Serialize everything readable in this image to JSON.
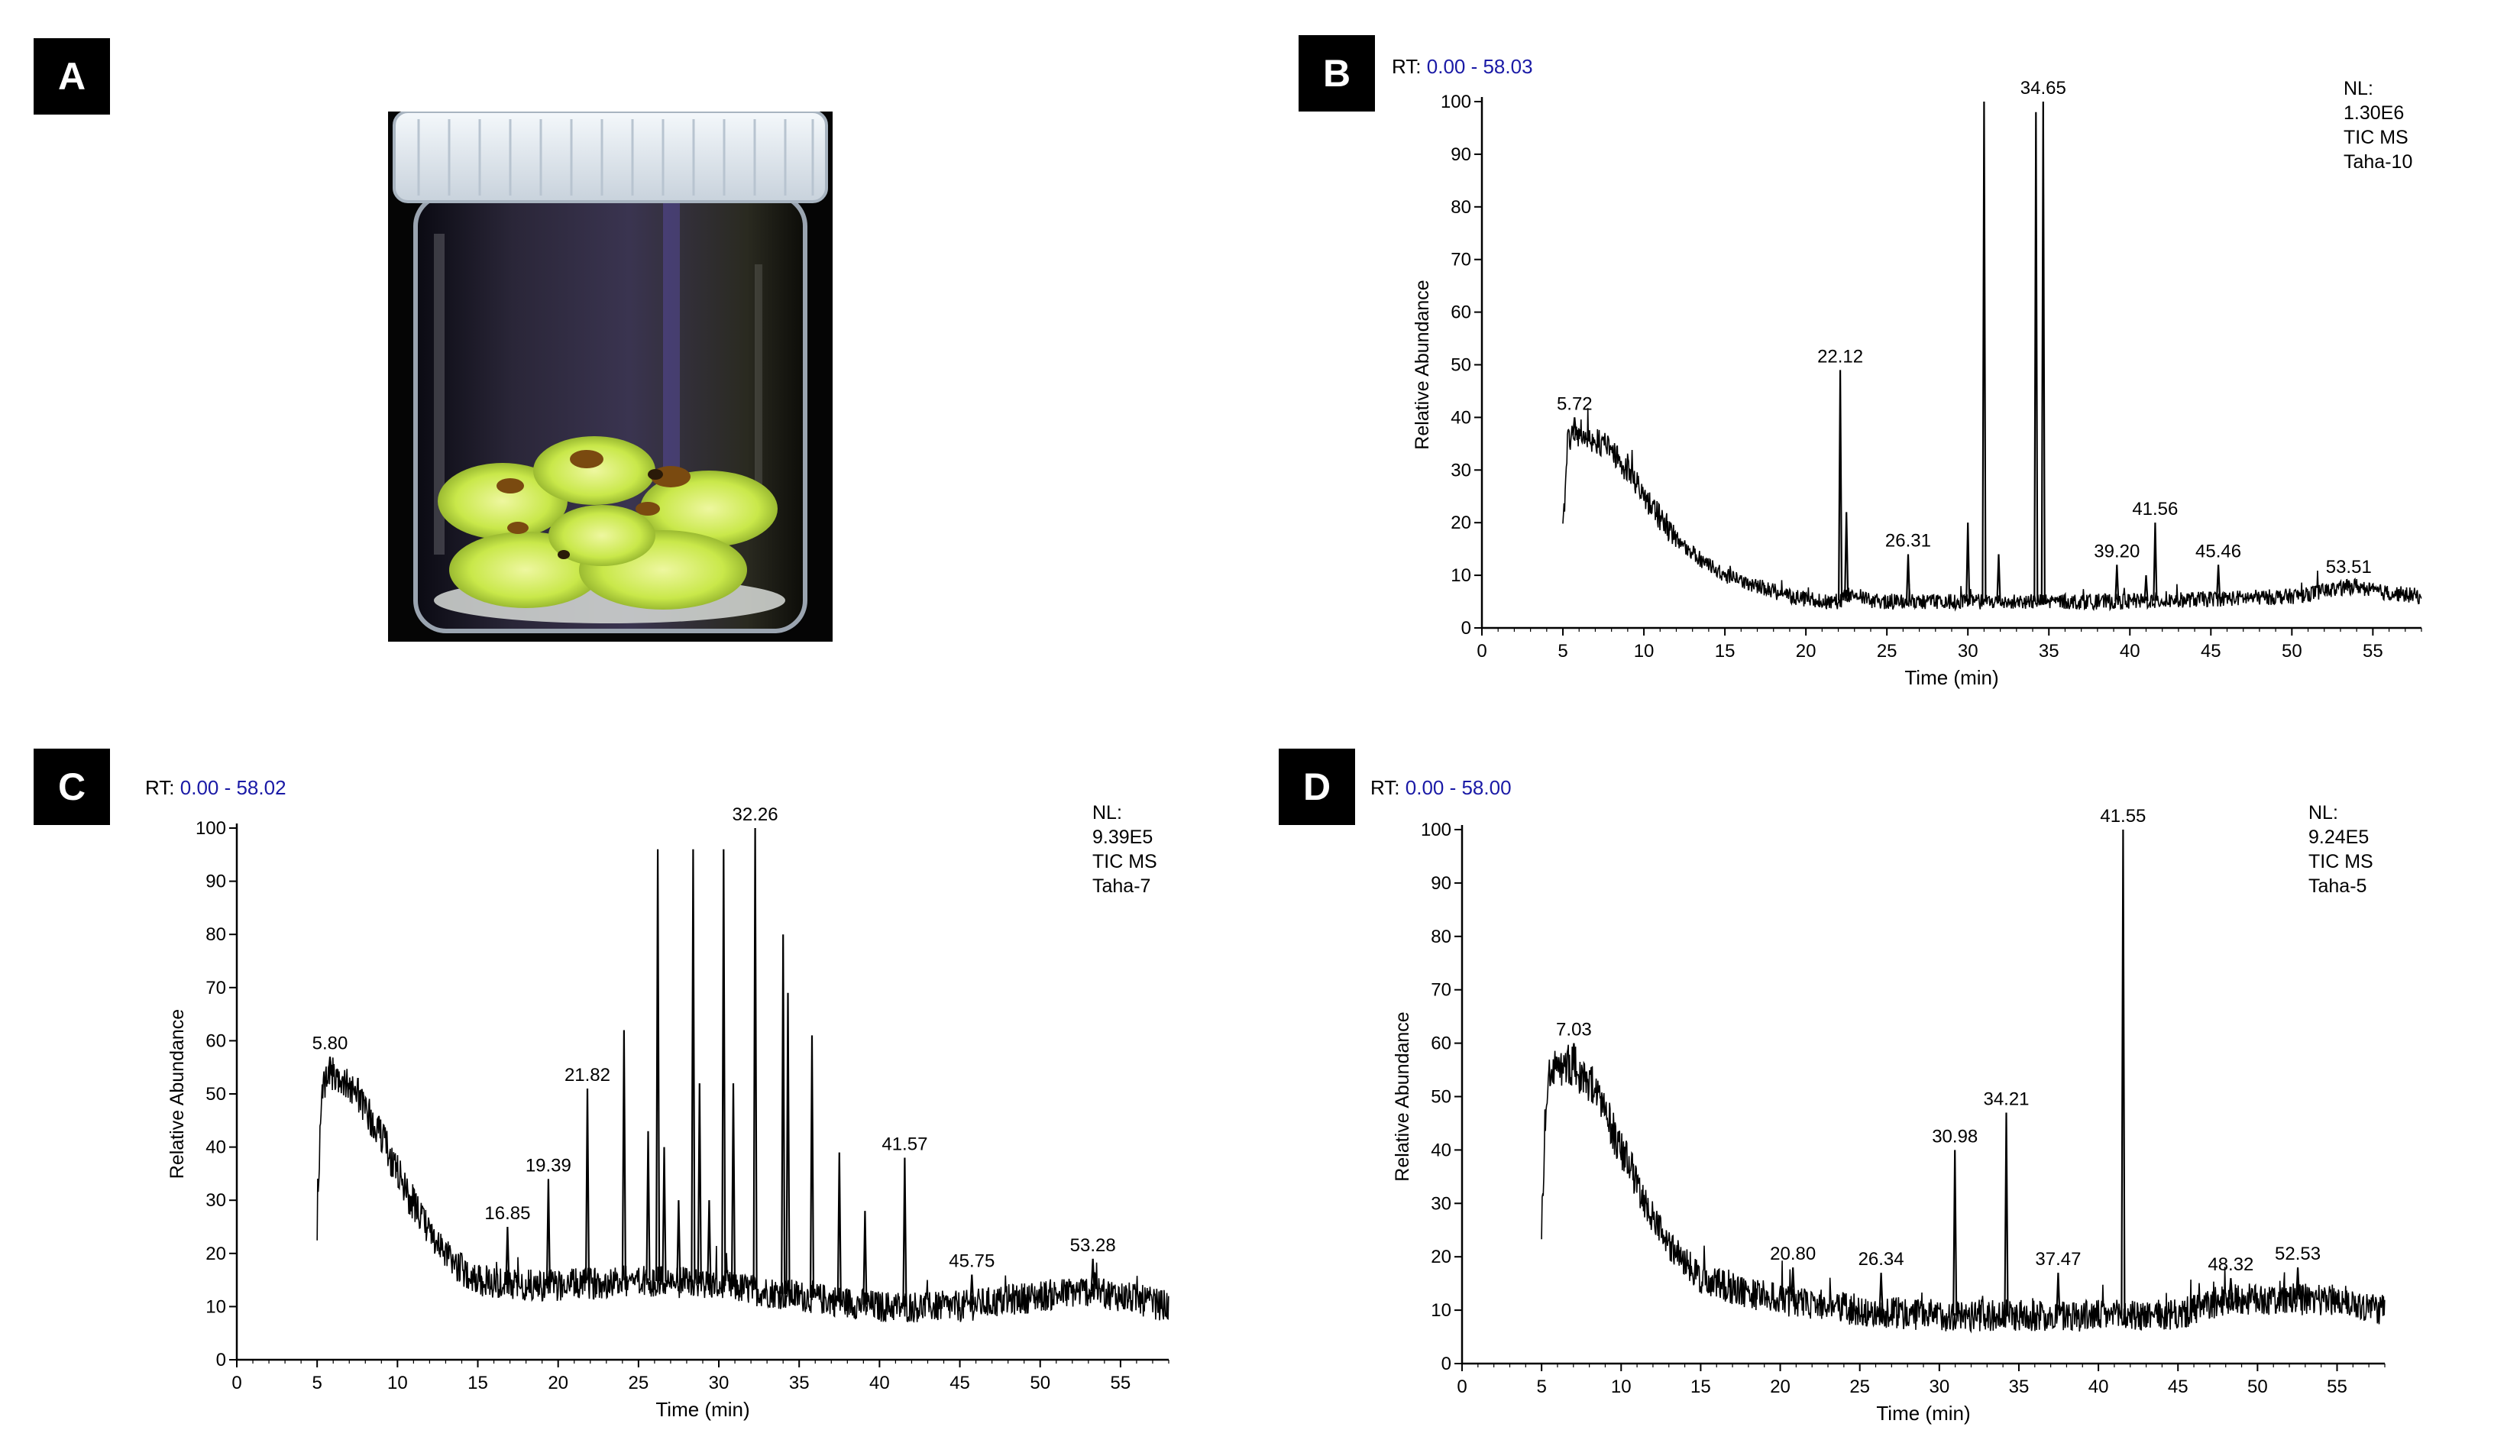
{
  "panels": {
    "a": {
      "label": "A"
    },
    "b": {
      "label": "B"
    },
    "c": {
      "label": "C"
    },
    "d": {
      "label": "D"
    }
  },
  "colors": {
    "rt_value": "#1a1aa6",
    "trace": "#000000",
    "jar_lid": "#e8eef3",
    "callus": "#c9e84a"
  },
  "chart_data": [
    {
      "panel": "B",
      "type": "line",
      "rt_prefix": "RT:",
      "rt_range": "0.00 - 58.03",
      "nl_lines": [
        "NL:",
        "1.30E6",
        "TIC  MS",
        "Taha-10"
      ],
      "xlabel": "Time (min)",
      "ylabel": "Relative Abundance",
      "xlim": [
        0,
        58
      ],
      "ylim": [
        0,
        100
      ],
      "xticks": [
        0,
        5,
        10,
        15,
        20,
        25,
        30,
        35,
        40,
        45,
        50,
        55
      ],
      "yticks": [
        0,
        10,
        20,
        30,
        40,
        50,
        60,
        70,
        80,
        90,
        100
      ],
      "trace_start": 5.0,
      "trace_end": 58.0,
      "baseline_points": [
        [
          5.0,
          18
        ],
        [
          5.3,
          36
        ],
        [
          6,
          37
        ],
        [
          7.5,
          35
        ],
        [
          9,
          30
        ],
        [
          10.5,
          23
        ],
        [
          12,
          17
        ],
        [
          13.5,
          13
        ],
        [
          15,
          10
        ],
        [
          17,
          8
        ],
        [
          19,
          6
        ],
        [
          21,
          5
        ],
        [
          22,
          5
        ],
        [
          23,
          7
        ],
        [
          24,
          5
        ],
        [
          30,
          5
        ],
        [
          40,
          5
        ],
        [
          50,
          6
        ],
        [
          52,
          7
        ],
        [
          54,
          8
        ],
        [
          55,
          7
        ],
        [
          58,
          6
        ]
      ],
      "noise_amp": 2.5,
      "noise_until": 12,
      "noise_amp_late": 1.5,
      "peaks": [
        {
          "x": 5.72,
          "y": 40,
          "label": "5.72"
        },
        {
          "x": 22.12,
          "y": 49,
          "label": "22.12"
        },
        {
          "x": 22.5,
          "y": 22,
          "label": ""
        },
        {
          "x": 26.31,
          "y": 14,
          "label": "26.31"
        },
        {
          "x": 30.0,
          "y": 20,
          "label": ""
        },
        {
          "x": 31.0,
          "y": 100,
          "label": ""
        },
        {
          "x": 31.9,
          "y": 14,
          "label": ""
        },
        {
          "x": 34.2,
          "y": 98,
          "label": ""
        },
        {
          "x": 34.65,
          "y": 100,
          "label": "34.65"
        },
        {
          "x": 39.2,
          "y": 12,
          "label": "39.20"
        },
        {
          "x": 41.0,
          "y": 10,
          "label": ""
        },
        {
          "x": 41.56,
          "y": 20,
          "label": "41.56"
        },
        {
          "x": 45.46,
          "y": 12,
          "label": "45.46"
        },
        {
          "x": 53.51,
          "y": 9,
          "label": "53.51"
        }
      ]
    },
    {
      "panel": "C",
      "type": "line",
      "rt_prefix": "RT:",
      "rt_range": "0.00 - 58.02",
      "nl_lines": [
        "NL:",
        "9.39E5",
        "TIC  MS",
        "Taha-7"
      ],
      "xlabel": "Time (min)",
      "ylabel": "Relative Abundance",
      "xlim": [
        0,
        58
      ],
      "ylim": [
        0,
        100
      ],
      "xticks": [
        0,
        5,
        10,
        15,
        20,
        25,
        30,
        35,
        40,
        45,
        50,
        55
      ],
      "yticks": [
        0,
        10,
        20,
        30,
        40,
        50,
        60,
        70,
        80,
        90,
        100
      ],
      "trace_start": 5.0,
      "trace_end": 58.0,
      "baseline_points": [
        [
          5.0,
          25
        ],
        [
          5.3,
          52
        ],
        [
          6,
          54
        ],
        [
          7.5,
          50
        ],
        [
          9,
          42
        ],
        [
          10.5,
          32
        ],
        [
          12,
          24
        ],
        [
          13.5,
          18
        ],
        [
          15,
          15
        ],
        [
          17,
          14
        ],
        [
          20,
          14
        ],
        [
          25,
          15
        ],
        [
          30,
          14
        ],
        [
          35,
          12
        ],
        [
          40,
          10
        ],
        [
          45,
          10
        ],
        [
          50,
          12
        ],
        [
          53,
          13
        ],
        [
          55,
          12
        ],
        [
          58,
          10
        ]
      ],
      "noise_amp": 3.5,
      "noise_until": 11,
      "noise_amp_late": 3,
      "peaks": [
        {
          "x": 5.8,
          "y": 57,
          "label": "5.80"
        },
        {
          "x": 16.85,
          "y": 25,
          "label": "16.85"
        },
        {
          "x": 19.39,
          "y": 34,
          "label": "19.39"
        },
        {
          "x": 21.82,
          "y": 51,
          "label": "21.82"
        },
        {
          "x": 24.1,
          "y": 62,
          "label": ""
        },
        {
          "x": 25.6,
          "y": 43,
          "label": ""
        },
        {
          "x": 26.2,
          "y": 96,
          "label": ""
        },
        {
          "x": 26.6,
          "y": 40,
          "label": ""
        },
        {
          "x": 27.5,
          "y": 30,
          "label": ""
        },
        {
          "x": 28.4,
          "y": 96,
          "label": ""
        },
        {
          "x": 28.8,
          "y": 52,
          "label": ""
        },
        {
          "x": 29.4,
          "y": 30,
          "label": ""
        },
        {
          "x": 30.3,
          "y": 96,
          "label": ""
        },
        {
          "x": 30.9,
          "y": 52,
          "label": ""
        },
        {
          "x": 32.26,
          "y": 100,
          "label": "32.26"
        },
        {
          "x": 34.0,
          "y": 80,
          "label": ""
        },
        {
          "x": 34.3,
          "y": 69,
          "label": ""
        },
        {
          "x": 35.8,
          "y": 61,
          "label": ""
        },
        {
          "x": 37.5,
          "y": 39,
          "label": ""
        },
        {
          "x": 39.1,
          "y": 28,
          "label": ""
        },
        {
          "x": 41.57,
          "y": 38,
          "label": "41.57"
        },
        {
          "x": 45.75,
          "y": 16,
          "label": "45.75"
        },
        {
          "x": 53.28,
          "y": 19,
          "label": "53.28"
        }
      ]
    },
    {
      "panel": "D",
      "type": "line",
      "rt_prefix": "RT:",
      "rt_range": "0.00 - 58.00",
      "nl_lines": [
        "NL:",
        "9.24E5",
        "TIC  MS",
        "Taha-5"
      ],
      "xlabel": "Time (min)",
      "ylabel": "Relative Abundance",
      "xlim": [
        0,
        58
      ],
      "ylim": [
        0,
        100
      ],
      "xticks": [
        0,
        5,
        10,
        15,
        20,
        25,
        30,
        35,
        40,
        45,
        50,
        55
      ],
      "yticks": [
        0,
        10,
        20,
        30,
        40,
        50,
        60,
        70,
        80,
        90,
        100
      ],
      "trace_start": 5.0,
      "trace_end": 58.0,
      "baseline_points": [
        [
          5.0,
          24
        ],
        [
          5.3,
          52
        ],
        [
          6,
          56
        ],
        [
          7,
          56
        ],
        [
          8.5,
          50
        ],
        [
          10,
          40
        ],
        [
          11.5,
          30
        ],
        [
          13,
          22
        ],
        [
          15,
          16
        ],
        [
          17,
          14
        ],
        [
          20,
          12
        ],
        [
          25,
          10
        ],
        [
          30,
          9
        ],
        [
          35,
          9
        ],
        [
          40,
          9
        ],
        [
          45,
          9
        ],
        [
          48,
          12
        ],
        [
          52,
          12
        ],
        [
          55,
          12
        ],
        [
          58,
          10
        ]
      ],
      "noise_amp": 4,
      "noise_until": 11,
      "noise_amp_late": 3,
      "peaks": [
        {
          "x": 7.03,
          "y": 60,
          "label": "7.03"
        },
        {
          "x": 20.8,
          "y": 18,
          "label": "20.80"
        },
        {
          "x": 26.34,
          "y": 17,
          "label": "26.34"
        },
        {
          "x": 30.98,
          "y": 40,
          "label": "30.98"
        },
        {
          "x": 34.21,
          "y": 47,
          "label": "34.21"
        },
        {
          "x": 37.47,
          "y": 17,
          "label": "37.47"
        },
        {
          "x": 41.55,
          "y": 100,
          "label": "41.55"
        },
        {
          "x": 48.32,
          "y": 16,
          "label": "48.32"
        },
        {
          "x": 52.53,
          "y": 18,
          "label": "52.53"
        }
      ]
    }
  ]
}
